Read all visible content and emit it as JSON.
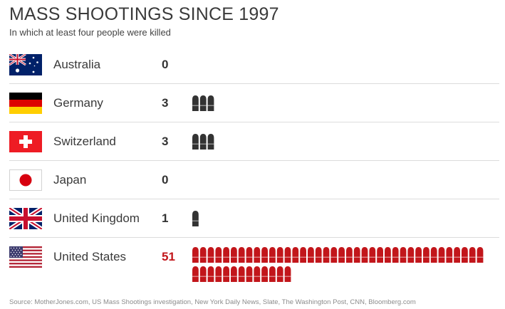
{
  "chart_data": {
    "type": "pictogram",
    "title": "MASS SHOOTINGS SINCE 1997",
    "subtitle": "In which at least four people were killed",
    "unit": "one bullet icon = one shooting",
    "categories": [
      "Australia",
      "Germany",
      "Switzerland",
      "Japan",
      "United Kingdom",
      "United States"
    ],
    "values": [
      0,
      3,
      3,
      0,
      1,
      51
    ],
    "highlight": "United States",
    "source": "Source: MotherJones.com, US Mass Shootings investigation, New York Daily News, Slate, The Washington Post, CNN, Bloomberg.com"
  },
  "rows": [
    {
      "country": "Australia",
      "count": "0",
      "flag": "australia-flag-icon"
    },
    {
      "country": "Germany",
      "count": "3",
      "flag": "germany-flag-icon"
    },
    {
      "country": "Switzerland",
      "count": "3",
      "flag": "switzerland-flag-icon"
    },
    {
      "country": "Japan",
      "count": "0",
      "flag": "japan-flag-icon"
    },
    {
      "country": "United Kingdom",
      "count": "1",
      "flag": "uk-flag-icon"
    },
    {
      "country": "United States",
      "count": "51",
      "flag": "us-flag-icon"
    }
  ],
  "colors": {
    "bullet_default": "#333333",
    "bullet_highlight": "#c2161b",
    "divider": "#dcdcdc",
    "text": "#3a3a3a"
  }
}
